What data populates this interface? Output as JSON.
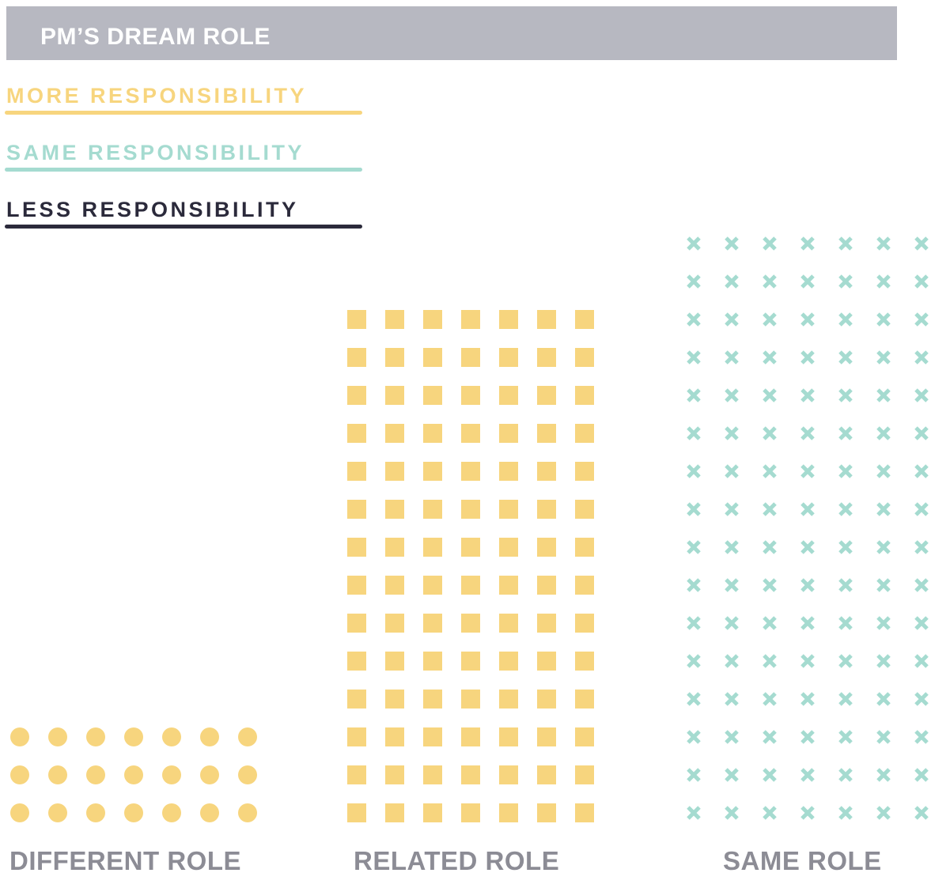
{
  "title": "PM’S DREAM ROLE",
  "legend": [
    {
      "label": "MORE RESPONSIBILITY",
      "color": "#f7d57e"
    },
    {
      "label": "SAME RESPONSIBILITY",
      "color": "#a5dbd0"
    },
    {
      "label": "LESS RESPONSIBILITY",
      "color": "#2b2a3b"
    }
  ],
  "colors": {
    "title_bar": "#b7b8c1",
    "title_text": "#ffffff",
    "category_label": "#8c8c95",
    "dot": "#f7d57e",
    "square": "#f7d57e",
    "cross": "#a5dbd0"
  },
  "chart_data": {
    "type": "waffle",
    "title": "PM’S DREAM ROLE",
    "categories": [
      "DIFFERENT ROLE",
      "RELATED ROLE",
      "SAME ROLE"
    ],
    "series": [
      {
        "name": "DIFFERENT ROLE",
        "marker": "dot",
        "color": "#f7d57e",
        "columns": 7,
        "rows": 3,
        "count": 21
      },
      {
        "name": "RELATED ROLE",
        "marker": "square",
        "color": "#f7d57e",
        "columns": 7,
        "rows": 14,
        "count": 98
      },
      {
        "name": "SAME ROLE",
        "marker": "x",
        "color": "#a5dbd0",
        "columns": 7,
        "rows": 16,
        "count": 112
      }
    ]
  }
}
